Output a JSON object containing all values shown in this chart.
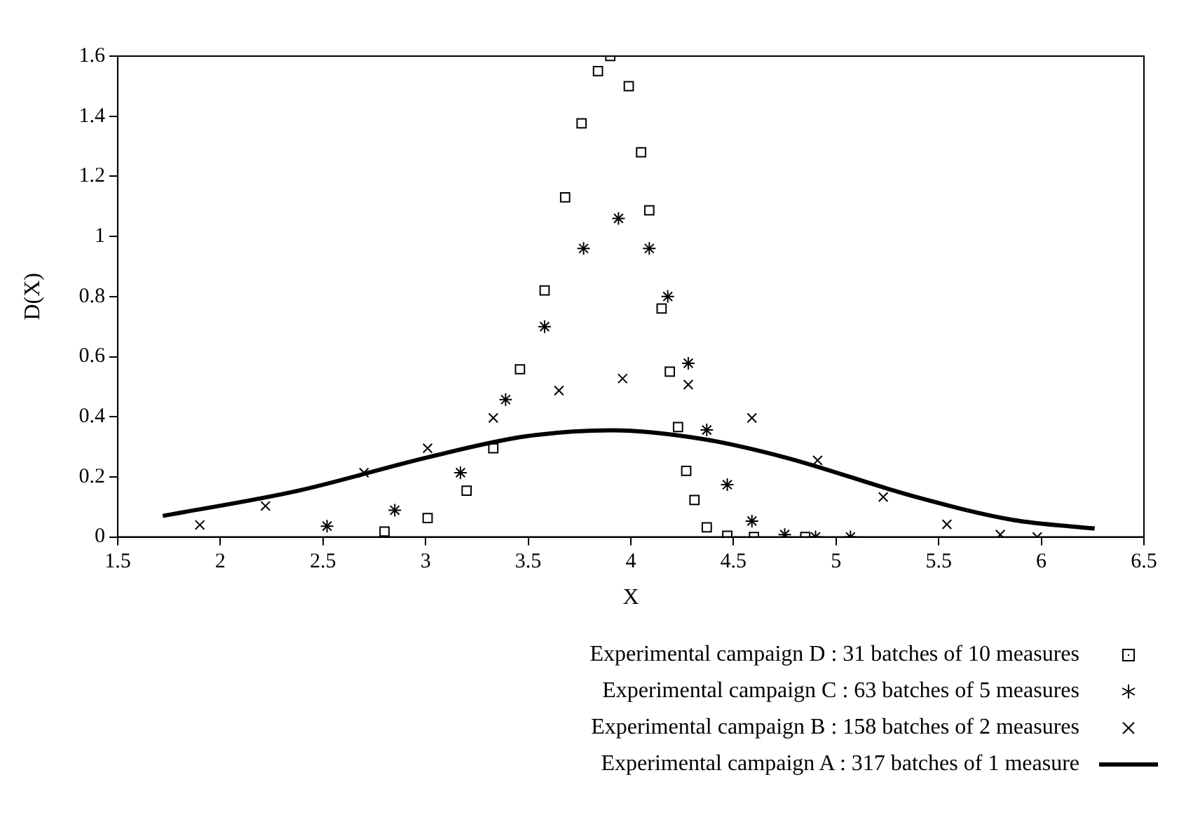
{
  "chart_data": {
    "type": "scatter",
    "xlabel": "X",
    "ylabel": "D(X)",
    "xlim": [
      1.5,
      6.5
    ],
    "xticks": [
      1.5,
      2,
      2.5,
      3,
      3.5,
      4,
      4.5,
      5,
      5.5,
      6,
      6.5
    ],
    "ylim": [
      0,
      1.6
    ],
    "yticks": [
      0,
      0.2,
      0.4,
      0.6,
      0.8,
      1,
      1.2,
      1.4,
      1.6
    ],
    "legend": "bottom",
    "series": [
      {
        "name": "Experimental campaign D : 31 batches of 10 measures",
        "type": "scatter",
        "marker": "square",
        "color": "#000000",
        "x": [
          2.8,
          3.01,
          3.2,
          3.33,
          3.46,
          3.58,
          3.68,
          3.76,
          3.84,
          3.9,
          3.99,
          4.05,
          4.09,
          4.15,
          4.19,
          4.23,
          4.27,
          4.31,
          4.37,
          4.47,
          4.6,
          4.85
        ],
        "values": [
          0.018,
          0.063,
          0.154,
          0.295,
          0.558,
          0.82,
          1.13,
          1.376,
          1.55,
          1.6,
          1.5,
          1.28,
          1.087,
          0.76,
          0.55,
          0.366,
          0.22,
          0.123,
          0.032,
          0.004,
          0.0,
          0.0
        ]
      },
      {
        "name": "Experimental campaign C : 63 batches of 5 measures",
        "type": "scatter",
        "color": "#000000",
        "x": [
          2.52,
          2.85,
          3.17,
          3.39,
          3.58,
          3.77,
          3.94,
          4.09,
          4.18,
          4.28,
          4.37,
          4.47,
          4.59,
          4.75,
          4.9,
          5.07
        ],
        "values": [
          0.036,
          0.089,
          0.214,
          0.457,
          0.7,
          0.96,
          1.06,
          0.96,
          0.8,
          0.578,
          0.356,
          0.174,
          0.053,
          0.008,
          0.0,
          0.0
        ]
      },
      {
        "name": "Experimental campaign B : 158 batches of 2 measures",
        "type": "scatter",
        "marker": "cross",
        "color": "#000000",
        "x": [
          1.9,
          2.22,
          2.7,
          3.01,
          3.33,
          3.65,
          3.96,
          4.28,
          4.59,
          4.91,
          5.23,
          5.54,
          5.8,
          5.98
        ],
        "values": [
          0.04,
          0.103,
          0.214,
          0.295,
          0.396,
          0.487,
          0.527,
          0.507,
          0.396,
          0.255,
          0.133,
          0.042,
          0.008,
          0.0
        ]
      },
      {
        "name": "Experimental campaign A : 317 batches of 1 measure",
        "type": "line",
        "marker": "none",
        "color": "#000000",
        "x": [
          1.72,
          2.38,
          3.01,
          3.49,
          3.91,
          4.34,
          4.75,
          5.39,
          5.86,
          6.26
        ],
        "values": [
          0.07,
          0.154,
          0.265,
          0.335,
          0.355,
          0.327,
          0.265,
          0.133,
          0.057,
          0.028
        ]
      }
    ]
  }
}
